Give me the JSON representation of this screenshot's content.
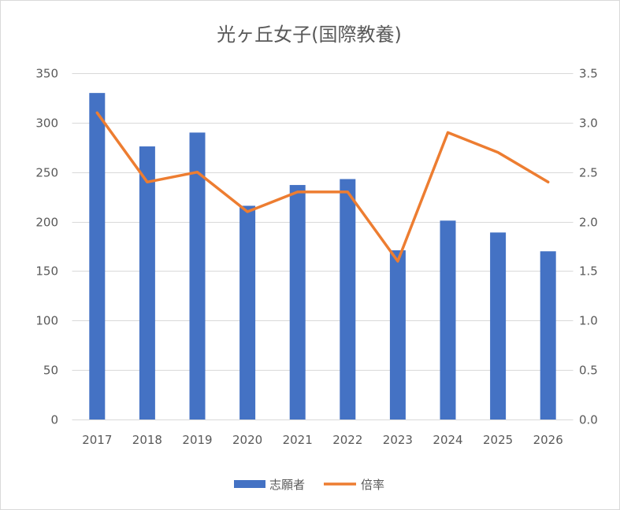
{
  "chart_data": {
    "type": "bar",
    "title": "光ヶ丘女子(国際教養)",
    "categories": [
      "2017",
      "2018",
      "2019",
      "2020",
      "2021",
      "2022",
      "2023",
      "2024",
      "2025",
      "2026"
    ],
    "ylim": [
      0,
      350
    ],
    "y_ticks": [
      "0",
      "50",
      "100",
      "150",
      "200",
      "250",
      "300",
      "350"
    ],
    "y2lim": [
      0,
      3.5
    ],
    "y2_ticks": [
      "0.0",
      "0.5",
      "1.0",
      "1.5",
      "2.0",
      "2.5",
      "3.0",
      "3.5"
    ],
    "grid": true,
    "legend": "bottom",
    "series": [
      {
        "name": "志願者",
        "type": "bar",
        "axis": "left",
        "color": "#4472C4",
        "values": [
          330,
          276,
          290,
          216,
          237,
          243,
          171,
          201,
          189,
          170
        ]
      },
      {
        "name": "倍率",
        "type": "line",
        "axis": "right",
        "color": "#ED7D31",
        "values": [
          3.1,
          2.4,
          2.5,
          2.1,
          2.3,
          2.3,
          1.6,
          2.9,
          2.7,
          2.4
        ]
      }
    ]
  }
}
